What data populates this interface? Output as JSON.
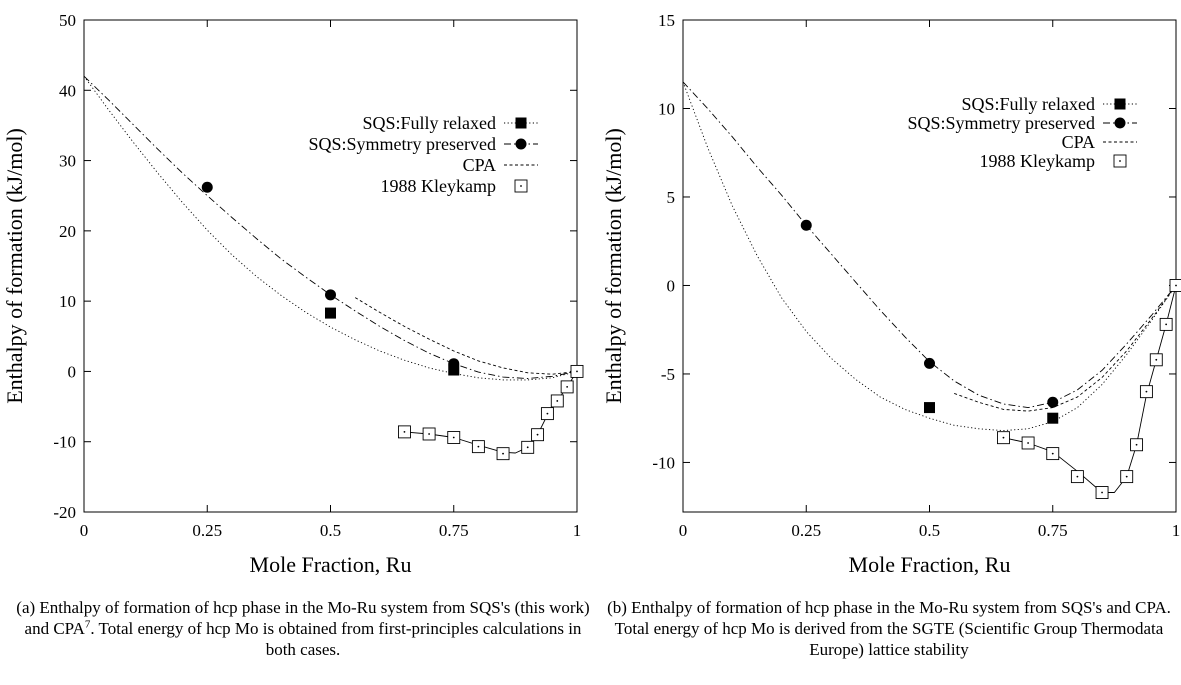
{
  "chart_data": [
    {
      "type": "line",
      "panel": "a",
      "xlabel": "Mole Fraction, Ru",
      "ylabel": "Enthalpy of formation (kJ/mol)",
      "xlim": [
        0,
        1
      ],
      "ylim": [
        -20,
        50
      ],
      "xticks": [
        0,
        0.25,
        0.5,
        0.75,
        1
      ],
      "xtick_labels": [
        "0",
        "0.25",
        "0.5",
        "0.75",
        "1"
      ],
      "yticks": [
        -20,
        -10,
        0,
        10,
        20,
        30,
        40,
        50
      ],
      "ytick_labels": [
        "-20",
        "-10",
        "0",
        "10",
        "20",
        "30",
        "40",
        "50"
      ],
      "legend_position": "top-right",
      "series": [
        {
          "name": "SQS:Fully relaxed",
          "line": "dotted",
          "marker": "filled-square",
          "curve": [
            [
              0,
              42
            ],
            [
              0.05,
              37.2
            ],
            [
              0.1,
              32.6
            ],
            [
              0.15,
              28.2
            ],
            [
              0.2,
              24
            ],
            [
              0.25,
              20.1
            ],
            [
              0.3,
              16.6
            ],
            [
              0.35,
              13.5
            ],
            [
              0.4,
              10.8
            ],
            [
              0.45,
              8.4
            ],
            [
              0.5,
              6.3
            ],
            [
              0.55,
              4.5
            ],
            [
              0.6,
              2.9
            ],
            [
              0.65,
              1.6
            ],
            [
              0.7,
              0.5
            ],
            [
              0.75,
              -0.3
            ],
            [
              0.8,
              -0.9
            ],
            [
              0.85,
              -1.2
            ],
            [
              0.9,
              -1.2
            ],
            [
              0.95,
              -0.9
            ],
            [
              1,
              0
            ]
          ],
          "points": [
            [
              0.5,
              8.3
            ],
            [
              0.75,
              0.2
            ]
          ]
        },
        {
          "name": "SQS:Symmetry preserved",
          "line": "dash-dot",
          "marker": "filled-circle",
          "curve": [
            [
              0,
              42
            ],
            [
              0.05,
              38.6
            ],
            [
              0.1,
              35.1
            ],
            [
              0.15,
              31.6
            ],
            [
              0.2,
              28.2
            ],
            [
              0.25,
              25
            ],
            [
              0.3,
              21.9
            ],
            [
              0.35,
              18.9
            ],
            [
              0.4,
              16
            ],
            [
              0.45,
              13.4
            ],
            [
              0.5,
              10.9
            ],
            [
              0.55,
              8.6
            ],
            [
              0.6,
              6.4
            ],
            [
              0.65,
              4.4
            ],
            [
              0.7,
              2.6
            ],
            [
              0.75,
              1.1
            ],
            [
              0.8,
              -0.1
            ],
            [
              0.85,
              -0.8
            ],
            [
              0.9,
              -1
            ],
            [
              0.95,
              -0.7
            ],
            [
              1,
              0
            ]
          ],
          "points": [
            [
              0.25,
              26.2
            ],
            [
              0.5,
              10.9
            ],
            [
              0.75,
              1.1
            ]
          ]
        },
        {
          "name": "CPA",
          "line": "short-dash",
          "marker": "none",
          "curve": [
            [
              0.55,
              10.5
            ],
            [
              0.6,
              8.4
            ],
            [
              0.65,
              6.4
            ],
            [
              0.7,
              4.6
            ],
            [
              0.75,
              2.9
            ],
            [
              0.8,
              1.5
            ],
            [
              0.85,
              0.5
            ],
            [
              0.9,
              -0.2
            ],
            [
              0.95,
              -0.4
            ],
            [
              1,
              0
            ]
          ],
          "points": []
        },
        {
          "name": "1988 Kleykamp",
          "line": "solid",
          "marker": "open-square",
          "curve": [
            [
              0.65,
              -8.6
            ],
            [
              0.7,
              -8.9
            ],
            [
              0.75,
              -9.4
            ],
            [
              0.8,
              -10.5
            ],
            [
              0.85,
              -11.5
            ],
            [
              0.875,
              -11.6
            ],
            [
              0.9,
              -10.8
            ],
            [
              0.92,
              -9
            ],
            [
              0.94,
              -6.2
            ],
            [
              0.96,
              -4.2
            ],
            [
              0.98,
              -2.2
            ],
            [
              1,
              0
            ]
          ],
          "points": [
            [
              0.65,
              -8.6
            ],
            [
              0.7,
              -8.9
            ],
            [
              0.75,
              -9.4
            ],
            [
              0.8,
              -10.7
            ],
            [
              0.85,
              -11.7
            ],
            [
              0.9,
              -10.8
            ],
            [
              0.92,
              -9
            ],
            [
              0.94,
              -6
            ],
            [
              0.96,
              -4.2
            ],
            [
              0.98,
              -2.2
            ],
            [
              1,
              0
            ]
          ]
        }
      ]
    },
    {
      "type": "line",
      "panel": "b",
      "xlabel": "Mole Fraction, Ru",
      "ylabel": "Enthalpy of formation (kJ/mol)",
      "xlim": [
        0,
        1
      ],
      "ylim": [
        -12.8,
        15
      ],
      "xticks": [
        0,
        0.25,
        0.5,
        0.75,
        1
      ],
      "xtick_labels": [
        "0",
        "0.25",
        "0.5",
        "0.75",
        "1"
      ],
      "yticks": [
        -10,
        -5,
        0,
        5,
        10,
        15
      ],
      "ytick_labels": [
        "-10",
        "-5",
        "0",
        "5",
        "10",
        "15"
      ],
      "legend_position": "top-right",
      "series": [
        {
          "name": "SQS:Fully relaxed",
          "line": "dotted",
          "marker": "filled-square",
          "curve": [
            [
              0,
              11.5
            ],
            [
              0.05,
              7.8
            ],
            [
              0.1,
              4.5
            ],
            [
              0.15,
              1.7
            ],
            [
              0.2,
              -0.7
            ],
            [
              0.25,
              -2.6
            ],
            [
              0.3,
              -4.1
            ],
            [
              0.35,
              -5.3
            ],
            [
              0.4,
              -6.3
            ],
            [
              0.45,
              -7
            ],
            [
              0.5,
              -7.5
            ],
            [
              0.55,
              -7.9
            ],
            [
              0.6,
              -8.1
            ],
            [
              0.65,
              -8.2
            ],
            [
              0.7,
              -8.1
            ],
            [
              0.75,
              -7.7
            ],
            [
              0.8,
              -6.9
            ],
            [
              0.85,
              -5.6
            ],
            [
              0.9,
              -3.9
            ],
            [
              0.95,
              -2
            ],
            [
              1,
              0
            ]
          ],
          "points": [
            [
              0.5,
              -6.9
            ],
            [
              0.75,
              -7.5
            ]
          ]
        },
        {
          "name": "SQS:Symmetry preserved",
          "line": "dash-dot",
          "marker": "filled-circle",
          "curve": [
            [
              0,
              11.5
            ],
            [
              0.05,
              10
            ],
            [
              0.1,
              8.4
            ],
            [
              0.15,
              6.7
            ],
            [
              0.2,
              5.1
            ],
            [
              0.25,
              3.4
            ],
            [
              0.3,
              1.8
            ],
            [
              0.35,
              0.2
            ],
            [
              0.4,
              -1.4
            ],
            [
              0.45,
              -2.9
            ],
            [
              0.5,
              -4.3
            ],
            [
              0.55,
              -5.4
            ],
            [
              0.6,
              -6.2
            ],
            [
              0.65,
              -6.7
            ],
            [
              0.7,
              -6.9
            ],
            [
              0.75,
              -6.6
            ],
            [
              0.8,
              -5.9
            ],
            [
              0.85,
              -4.8
            ],
            [
              0.9,
              -3.3
            ],
            [
              0.95,
              -1.7
            ],
            [
              1,
              0
            ]
          ],
          "points": [
            [
              0.25,
              3.4
            ],
            [
              0.5,
              -4.4
            ],
            [
              0.75,
              -6.6
            ]
          ]
        },
        {
          "name": "CPA",
          "line": "short-dash",
          "marker": "none",
          "curve": [
            [
              0.55,
              -6.1
            ],
            [
              0.6,
              -6.6
            ],
            [
              0.65,
              -7
            ],
            [
              0.7,
              -7.1
            ],
            [
              0.75,
              -6.9
            ],
            [
              0.8,
              -6.3
            ],
            [
              0.85,
              -5.2
            ],
            [
              0.9,
              -3.7
            ],
            [
              0.95,
              -1.9
            ],
            [
              1,
              0
            ]
          ],
          "points": []
        },
        {
          "name": "1988 Kleykamp",
          "line": "solid",
          "marker": "open-square",
          "curve": [
            [
              0.65,
              -8.6
            ],
            [
              0.7,
              -8.9
            ],
            [
              0.75,
              -9.4
            ],
            [
              0.8,
              -10.5
            ],
            [
              0.85,
              -11.7
            ],
            [
              0.875,
              -11.7
            ],
            [
              0.9,
              -10.8
            ],
            [
              0.92,
              -9
            ],
            [
              0.94,
              -6.2
            ],
            [
              0.96,
              -4.2
            ],
            [
              0.98,
              -2.2
            ],
            [
              1,
              0
            ]
          ],
          "points": [
            [
              0.65,
              -8.6
            ],
            [
              0.7,
              -8.9
            ],
            [
              0.75,
              -9.5
            ],
            [
              0.8,
              -10.8
            ],
            [
              0.85,
              -11.7
            ],
            [
              0.9,
              -10.8
            ],
            [
              0.92,
              -9
            ],
            [
              0.94,
              -6
            ],
            [
              0.96,
              -4.2
            ],
            [
              0.98,
              -2.2
            ],
            [
              1,
              0
            ]
          ]
        }
      ]
    }
  ],
  "captions": {
    "a_main": "(a) Enthalpy of formation of hcp phase in the Mo-Ru system from SQS's (this work) and CPA",
    "a_sup": "7",
    "a_rest": ". Total energy of hcp Mo is obtained from first-principles calculations in both cases.",
    "b": "(b) Enthalpy of formation of hcp phase in the Mo-Ru system from SQS's and CPA. Total energy of hcp Mo is derived from the SGTE (Scientific Group Thermodata Europe) lattice stability"
  }
}
